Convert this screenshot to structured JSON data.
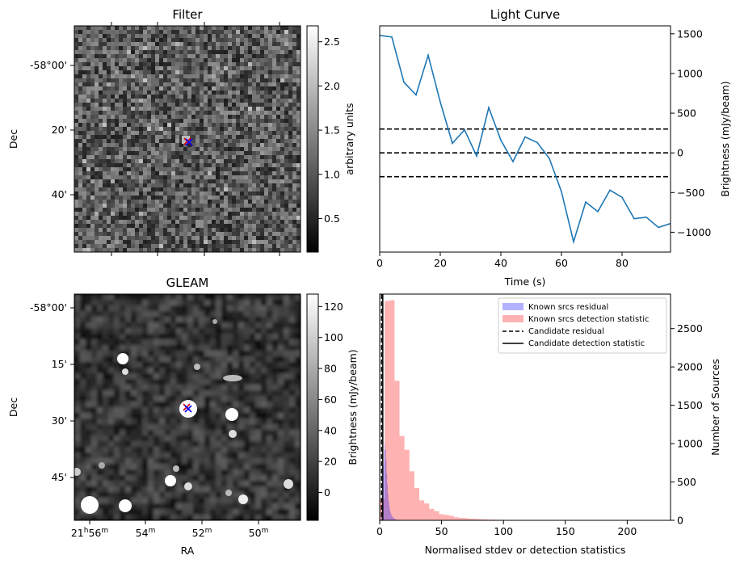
{
  "filter_panel": {
    "title": "Filter",
    "ylabel": "Dec",
    "yticks": [
      "-58°00'",
      "20'",
      "40'"
    ],
    "colorbar_label": "arbitrary units",
    "colorbar_ticks": [
      "0.5",
      "1.0",
      "1.5",
      "2.0",
      "2.5"
    ],
    "colorbar_range": [
      0.12,
      2.68
    ]
  },
  "gleam_panel": {
    "title": "GLEAM",
    "ylabel": "Dec",
    "xlabel": "RA",
    "yticks": [
      "-58°00'",
      "15'",
      "30'",
      "45'"
    ],
    "xticks": [
      {
        "base": "21",
        "h": "h",
        "m_base": "56",
        "m": "m"
      },
      {
        "base": "54",
        "m": "m"
      },
      {
        "base": "52",
        "m": "m"
      },
      {
        "base": "50",
        "m": "m"
      }
    ],
    "colorbar_label": "Brightness (mJy/beam)",
    "colorbar_ticks": [
      "0",
      "20",
      "40",
      "60",
      "80",
      "100",
      "120"
    ],
    "colorbar_range": [
      -18,
      128
    ]
  },
  "chart_data": [
    {
      "type": "line",
      "title": "Light Curve",
      "xlabel": "Time (s)",
      "ylabel": "Brightness (mJy/beam)",
      "xlim": [
        0,
        96
      ],
      "ylim": [
        -1250,
        1600
      ],
      "xticks": [
        0,
        20,
        40,
        60,
        80
      ],
      "yticks": [
        1500,
        1000,
        500,
        0,
        -500,
        -1000
      ],
      "x": [
        0,
        4,
        8,
        12,
        16,
        20,
        24,
        28,
        32,
        36,
        40,
        44,
        48,
        52,
        56,
        60,
        64,
        68,
        72,
        76,
        80,
        84,
        88,
        92,
        96
      ],
      "y": [
        1480,
        1460,
        890,
        730,
        1230,
        640,
        120,
        290,
        -40,
        570,
        160,
        -110,
        200,
        130,
        -70,
        -490,
        -1120,
        -620,
        -740,
        -470,
        -560,
        -830,
        -810,
        -940,
        -890
      ],
      "color": "#1f77b4",
      "hlines": [
        300,
        0,
        -300
      ],
      "hline_style": "dashed"
    },
    {
      "type": "bar",
      "xlabel": "Normalised stdev or detection statistics",
      "ylabel": "Number of Sources",
      "xlim": [
        0,
        235
      ],
      "ylim": [
        0,
        2950
      ],
      "xticks": [
        0,
        50,
        100,
        150,
        200
      ],
      "yticks": [
        0,
        500,
        1000,
        1500,
        2000,
        2500
      ],
      "legend_position": "top-right",
      "legend": [
        "Known srcs residual",
        "Known srcs detection statistic",
        "Candidate residual",
        "Candidate detection statistic"
      ],
      "series": [
        {
          "name": "Known srcs residual",
          "color": "#7777ff",
          "bin_width": 0.5,
          "x_start": 0,
          "values": [
            0,
            0,
            50,
            120,
            260,
            460,
            720,
            920,
            1000,
            920,
            780,
            610,
            470,
            350,
            260,
            190,
            140,
            105,
            80,
            62,
            48,
            38,
            30,
            24,
            19,
            15,
            12,
            9,
            7,
            5,
            4,
            3,
            2,
            2,
            1,
            1
          ]
        },
        {
          "name": "Known srcs detection statistic",
          "color": "#ff7777",
          "bin_width": 4,
          "x_start": 0,
          "values": [
            280,
            2860,
            2870,
            1820,
            1100,
            920,
            640,
            420,
            260,
            220,
            150,
            120,
            80,
            70,
            60,
            40,
            32,
            28,
            22,
            18,
            14,
            12,
            10,
            8,
            7,
            6,
            5,
            4,
            3,
            3,
            2,
            2,
            2,
            1,
            1,
            1,
            1,
            1,
            1,
            1,
            1,
            1,
            1,
            1,
            1,
            1,
            1,
            1,
            1,
            1,
            1,
            1,
            1,
            1,
            1,
            3,
            1,
            1
          ]
        }
      ],
      "vlines": [
        {
          "name": "Candidate residual",
          "x": 1.5,
          "style": "dashed"
        },
        {
          "name": "Candidate detection statistic",
          "x": 2.5,
          "style": "solid"
        }
      ]
    }
  ]
}
